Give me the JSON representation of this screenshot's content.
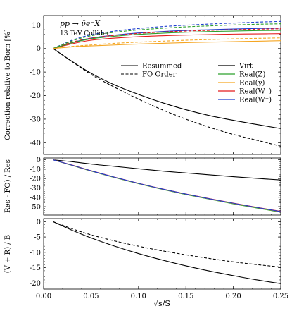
{
  "figure": {
    "process_label": "pp → ν̄e⁻X",
    "collider_label": "13 TeV Collider",
    "xlabel": "√s/S"
  },
  "colors": {
    "virt": "#000000",
    "real_z": "#2ca02c",
    "real_gamma": "#f5a623",
    "real_wplus": "#e41a1c",
    "real_wminus": "#1f3fcf"
  },
  "chart_data": [
    {
      "type": "line",
      "panel": "top",
      "ylabel": "Correction relative to Born [%]",
      "xlim": [
        0,
        0.25
      ],
      "ylim": [
        -45,
        14
      ],
      "xticks": [
        0.0,
        0.05,
        0.1,
        0.15,
        0.2,
        0.25
      ],
      "xtick_labels": [
        "0.00",
        "0.05",
        "0.10",
        "0.15",
        "0.20",
        "0.25"
      ],
      "yticks": [
        -40,
        -30,
        -20,
        -10,
        0,
        10
      ],
      "legend_style": [
        {
          "label": "Resummed",
          "dash": "solid"
        },
        {
          "label": "FO Order",
          "dash": "dashed"
        }
      ],
      "legend_color": [
        {
          "label": "Virt",
          "color": "#000000"
        },
        {
          "label": "Real(Z)",
          "color": "#2ca02c"
        },
        {
          "label": "Real(γ)",
          "color": "#f5a623"
        },
        {
          "label": "Real(W⁺)",
          "color": "#e41a1c"
        },
        {
          "label": "Real(W⁻)",
          "color": "#1f3fcf"
        }
      ],
      "x": [
        0.01,
        0.03,
        0.05,
        0.075,
        0.1,
        0.125,
        0.15,
        0.175,
        0.2,
        0.225,
        0.25
      ],
      "series": [
        {
          "name": "Virt",
          "style": "resummed",
          "color": "#000000",
          "values": [
            0,
            -5.5,
            -10.5,
            -15.5,
            -19.5,
            -23,
            -26,
            -28.5,
            -30.5,
            -32.3,
            -34
          ]
        },
        {
          "name": "Virt",
          "style": "fo",
          "color": "#000000",
          "values": [
            0,
            -5.6,
            -11,
            -16.5,
            -21.5,
            -26,
            -30,
            -33.5,
            -36.5,
            -39,
            -41.5
          ]
        },
        {
          "name": "Real(W⁻)",
          "style": "resummed",
          "color": "#1f3fcf",
          "values": [
            0,
            2.5,
            4.4,
            5.7,
            6.6,
            7.2,
            7.7,
            8.0,
            8.3,
            8.5,
            8.7
          ]
        },
        {
          "name": "Real(W⁻)",
          "style": "fo",
          "color": "#1f3fcf",
          "values": [
            0,
            3.5,
            5.8,
            7.4,
            8.5,
            9.3,
            9.9,
            10.4,
            10.8,
            11.2,
            11.5
          ]
        },
        {
          "name": "Real(W⁺)",
          "style": "resummed",
          "color": "#e41a1c",
          "values": [
            0,
            2.0,
            3.5,
            4.4,
            5.0,
            5.4,
            5.7,
            5.9,
            6.1,
            6.2,
            6.3
          ]
        },
        {
          "name": "Real(W⁺)",
          "style": "fo",
          "color": "#e41a1c",
          "values": [
            0,
            2.7,
            4.4,
            5.6,
            6.4,
            7.0,
            7.4,
            7.7,
            8.0,
            8.2,
            8.4
          ]
        },
        {
          "name": "Real(Z)",
          "style": "resummed",
          "color": "#2ca02c",
          "values": [
            0,
            2.4,
            4.1,
            5.2,
            6.0,
            6.5,
            6.9,
            7.2,
            7.4,
            7.6,
            7.7
          ]
        },
        {
          "name": "Real(Z)",
          "style": "fo",
          "color": "#2ca02c",
          "values": [
            0,
            3.2,
            5.4,
            6.9,
            7.9,
            8.6,
            9.2,
            9.6,
            10.0,
            10.3,
            10.5
          ]
        },
        {
          "name": "Real(γ)",
          "style": "resummed",
          "color": "#f5a623",
          "values": [
            0,
            0.7,
            1.1,
            1.5,
            1.9,
            2.2,
            2.5,
            2.7,
            2.9,
            3.1,
            3.3
          ]
        },
        {
          "name": "Real(γ)",
          "style": "fo",
          "color": "#f5a623",
          "values": [
            0,
            0.9,
            1.5,
            2.2,
            2.7,
            3.1,
            3.5,
            3.8,
            4.1,
            4.3,
            4.5
          ]
        }
      ]
    },
    {
      "type": "line",
      "panel": "middle",
      "ylabel": "Res - FO) / Res",
      "ylim": [
        -59,
        2
      ],
      "yticks": [
        0,
        -10,
        -20,
        -30,
        -40,
        -50
      ],
      "x": [
        0.01,
        0.03,
        0.05,
        0.075,
        0.1,
        0.125,
        0.15,
        0.175,
        0.2,
        0.225,
        0.25
      ],
      "series": [
        {
          "name": "Virt",
          "color": "#000000",
          "values": [
            0,
            -2.0,
            -4.5,
            -7,
            -9.5,
            -12,
            -14,
            -16,
            -18,
            -19.8,
            -21.5
          ]
        },
        {
          "name": "Real(Z)",
          "color": "#2ca02c",
          "values": [
            0,
            -6,
            -12,
            -19,
            -25.5,
            -31.5,
            -37,
            -42,
            -47,
            -51.5,
            -56
          ]
        },
        {
          "name": "Real(γ)",
          "color": "#f5a623",
          "values": [
            0,
            -5.8,
            -11.8,
            -18.7,
            -25.2,
            -31.2,
            -36.6,
            -41.7,
            -46.5,
            -51,
            -55.5
          ]
        },
        {
          "name": "Real(W⁺)",
          "color": "#e41a1c",
          "values": [
            0,
            -5.6,
            -11.6,
            -18.5,
            -25,
            -31,
            -36.4,
            -41.4,
            -46.2,
            -50.7,
            -55
          ]
        },
        {
          "name": "Real(W⁻)",
          "color": "#1f3fcf",
          "values": [
            0,
            -5.7,
            -11.7,
            -18.6,
            -25.1,
            -31.1,
            -36.5,
            -41.6,
            -46.4,
            -50.9,
            -55.3
          ]
        }
      ]
    },
    {
      "type": "line",
      "panel": "bottom",
      "ylabel": "(V + R) / B",
      "ylim": [
        -22,
        1
      ],
      "yticks": [
        0,
        -5,
        -10,
        -15,
        -20
      ],
      "x": [
        0.01,
        0.03,
        0.05,
        0.075,
        0.1,
        0.125,
        0.15,
        0.175,
        0.2,
        0.225,
        0.25
      ],
      "series": [
        {
          "name": "Resummed",
          "style": "resummed",
          "color": "#000000",
          "values": [
            0,
            -2.8,
            -5.3,
            -8.0,
            -10.4,
            -12.5,
            -14.4,
            -16.1,
            -17.6,
            -19.0,
            -20.2
          ]
        },
        {
          "name": "FO Order",
          "style": "fo",
          "color": "#000000",
          "values": [
            0,
            -2.3,
            -4.3,
            -6.3,
            -8.0,
            -9.5,
            -10.8,
            -12.0,
            -13.1,
            -14.0,
            -14.8
          ]
        }
      ]
    }
  ]
}
